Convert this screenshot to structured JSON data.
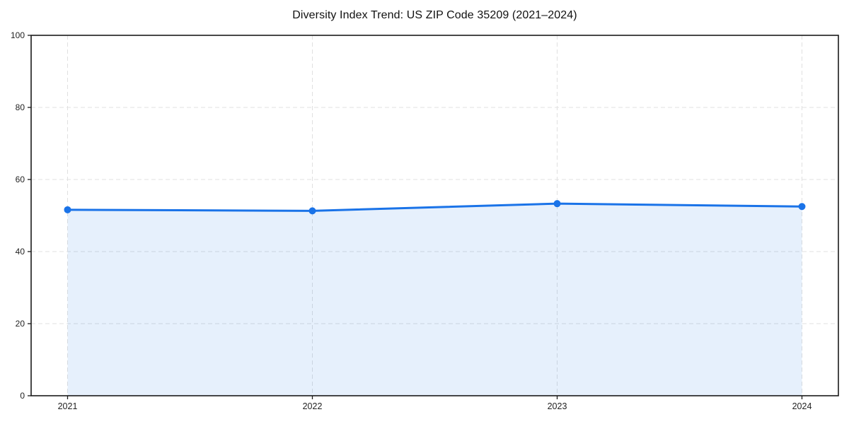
{
  "chart_data": {
    "type": "area",
    "title": "Diversity Index Trend: US ZIP Code 35209 (2021–2024)",
    "xlabel": "",
    "ylabel": "",
    "categories": [
      "2021",
      "2022",
      "2023",
      "2024"
    ],
    "series": [
      {
        "name": "Diversity Index",
        "values": [
          51.6,
          51.3,
          53.3,
          52.5
        ]
      }
    ],
    "ylim": [
      0,
      100
    ],
    "yticks": [
      0,
      20,
      40,
      60,
      80,
      100
    ],
    "grid": "dashed-both",
    "legend": "none",
    "colors": {
      "line": "#1a73e8",
      "marker": "#1a73e8",
      "fill": "#1a73e8",
      "fill_opacity": "0.11",
      "grid": "#e0e0e0",
      "axis": "#1a1a1a",
      "tick_label": "#222222",
      "title": "#111111",
      "background": "#ffffff"
    }
  }
}
